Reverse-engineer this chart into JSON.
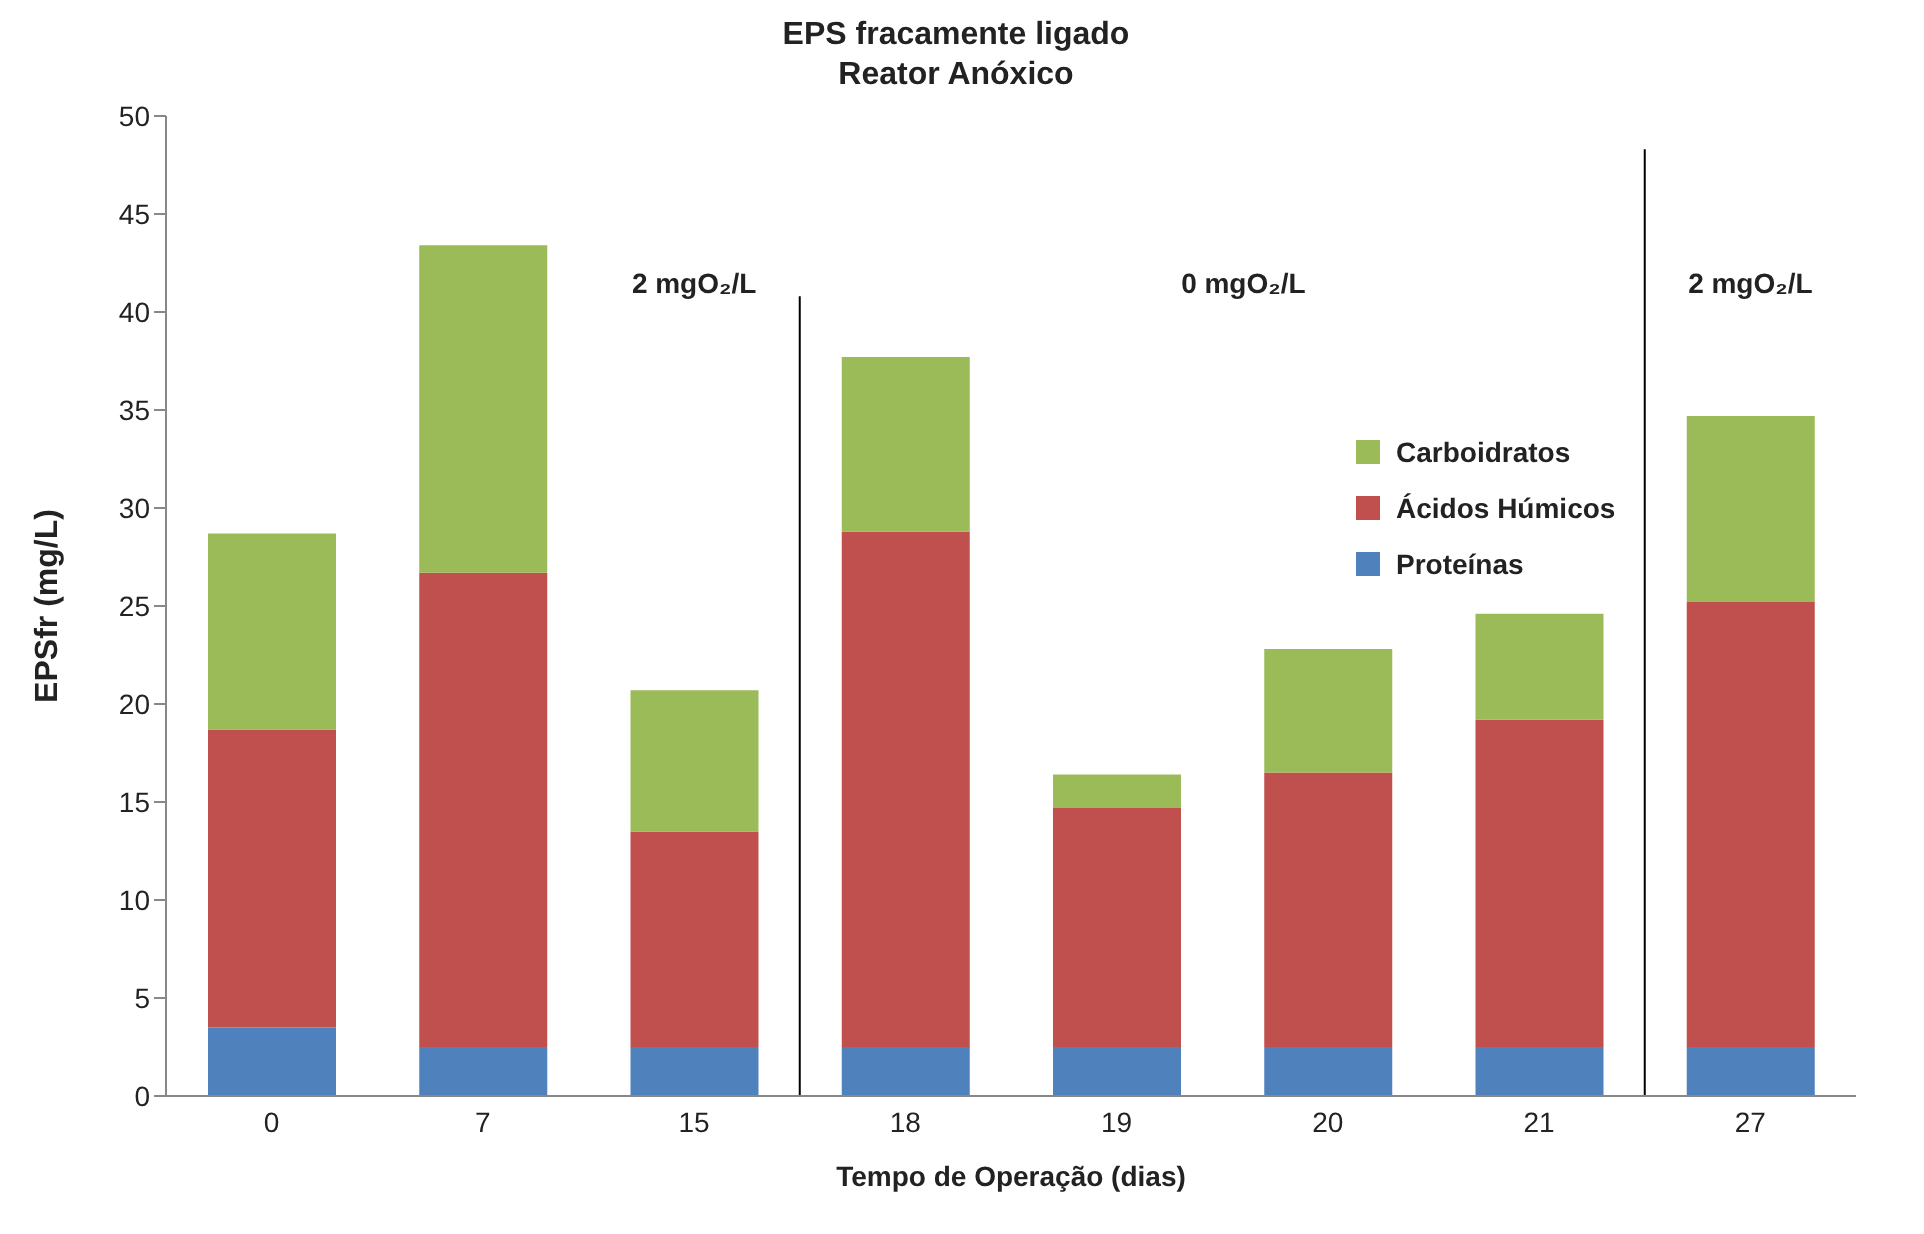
{
  "chart_data": {
    "type": "bar",
    "title": "EPS fracamente ligado",
    "subtitle": "Reator Anóxico",
    "xlabel": "Tempo de Operação (dias)",
    "ylabel": "EPSfr (mg/L)",
    "categories": [
      "0",
      "7",
      "15",
      "18",
      "19",
      "20",
      "21",
      "27"
    ],
    "series": [
      {
        "name": "Proteínas",
        "color": "#4f81bd",
        "values": [
          3.5,
          2.5,
          2.5,
          2.5,
          2.5,
          2.5,
          2.5,
          2.5
        ]
      },
      {
        "name": "Ácidos Húmicos",
        "color": "#c0504d",
        "values": [
          15.2,
          24.2,
          11.0,
          26.3,
          12.2,
          14.0,
          16.7,
          22.7
        ]
      },
      {
        "name": "Carboidratos",
        "color": "#9bbb59",
        "values": [
          10.0,
          16.7,
          7.2,
          8.9,
          1.7,
          6.3,
          5.4,
          9.5
        ]
      }
    ],
    "stacked": true,
    "ylim": [
      0,
      50
    ],
    "yticks": [
      0,
      5,
      10,
      15,
      20,
      25,
      30,
      35,
      40,
      45,
      50
    ],
    "legend": "right",
    "annotations": [
      "2 mgO₂/L",
      "0 mgO₂/L",
      "2 mgO₂/L"
    ]
  }
}
